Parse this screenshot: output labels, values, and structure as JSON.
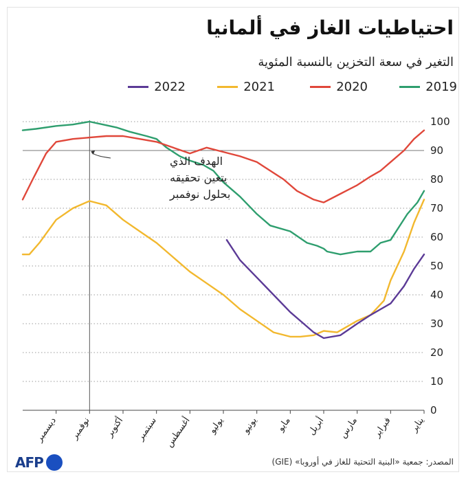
{
  "title": "احتياطيات الغاز في ألمانيا",
  "subtitle": "التغير في سعة التخزين بالنسبة المئوية",
  "source": "المصدر: جمعية «البنية التحتية للغاز في أوروبا» (GIE)",
  "logo": "AFP",
  "colors": {
    "2019": "#2e9e6e",
    "2020": "#e0473a",
    "2021": "#f2b82e",
    "2022": "#5b3a96"
  },
  "legend": [
    {
      "name": "2019",
      "color": "#2e9e6e"
    },
    {
      "name": "2020",
      "color": "#e0473a"
    },
    {
      "name": "2021",
      "color": "#f2b82e"
    },
    {
      "name": "2022",
      "color": "#5b3a96"
    }
  ],
  "annotation": {
    "lines": [
      "الهدف الذي",
      "يتعين تحقيقه",
      "بحلول نوفمبر"
    ],
    "target": 90
  },
  "chart_data": {
    "type": "line",
    "title": "احتياطيات الغاز في ألمانيا",
    "ylabel": "التغير في سعة التخزين بالنسبة المئوية",
    "ylim": [
      0,
      100
    ],
    "yticks": [
      0,
      10,
      20,
      30,
      40,
      50,
      60,
      70,
      80,
      90,
      100
    ],
    "xlim": [
      0,
      12
    ],
    "x_direction": "right-to-left",
    "month_labels": [
      "يناير",
      "فبراير",
      "مارس",
      "أبريل",
      "مايو",
      "يونيو",
      "يوليو",
      "أغسطس",
      "سبتمبر",
      "أكتوبر",
      "نوفمبر",
      "ديسمبر"
    ],
    "month_positions": [
      0,
      1,
      2,
      3,
      4,
      5,
      6,
      7,
      8,
      9,
      10,
      11
    ],
    "reference_line": {
      "y": 90
    },
    "series": [
      {
        "name": "2019",
        "points": [
          [
            0,
            76
          ],
          [
            0.2,
            72
          ],
          [
            0.5,
            68
          ],
          [
            1,
            59
          ],
          [
            1.3,
            58
          ],
          [
            1.6,
            55
          ],
          [
            2,
            55
          ],
          [
            2.5,
            54
          ],
          [
            2.9,
            55
          ],
          [
            3,
            56
          ],
          [
            3.2,
            57
          ],
          [
            3.5,
            58
          ],
          [
            4,
            62
          ],
          [
            4.6,
            64
          ],
          [
            5,
            68
          ],
          [
            5.5,
            74
          ],
          [
            6,
            79
          ],
          [
            6.3,
            83
          ],
          [
            6.6,
            85
          ],
          [
            7,
            86.5
          ],
          [
            7.3,
            88
          ],
          [
            7.7,
            91
          ],
          [
            8,
            94
          ],
          [
            8.3,
            95
          ],
          [
            8.8,
            96.5
          ],
          [
            9.2,
            98
          ],
          [
            9.6,
            99
          ],
          [
            10,
            100
          ],
          [
            10.5,
            99
          ],
          [
            11,
            98.5
          ],
          [
            11.6,
            97.5
          ],
          [
            12,
            97
          ]
        ]
      },
      {
        "name": "2020",
        "points": [
          [
            0,
            97
          ],
          [
            0.3,
            94
          ],
          [
            0.6,
            90
          ],
          [
            1,
            86
          ],
          [
            1.3,
            83
          ],
          [
            1.6,
            81
          ],
          [
            2,
            78
          ],
          [
            2.5,
            75
          ],
          [
            3,
            72
          ],
          [
            3.3,
            73
          ],
          [
            3.8,
            76
          ],
          [
            4.2,
            80
          ],
          [
            4.6,
            83
          ],
          [
            5,
            86
          ],
          [
            5.5,
            88
          ],
          [
            6,
            89.5
          ],
          [
            6.5,
            91
          ],
          [
            7,
            89
          ],
          [
            7.5,
            91
          ],
          [
            8,
            93
          ],
          [
            8.5,
            94
          ],
          [
            9,
            95
          ],
          [
            9.5,
            95
          ],
          [
            10,
            94.5
          ],
          [
            10.5,
            94
          ],
          [
            11,
            93
          ],
          [
            11.3,
            89
          ],
          [
            11.7,
            80
          ],
          [
            12,
            73
          ]
        ]
      },
      {
        "name": "2021",
        "points": [
          [
            0,
            73
          ],
          [
            0.3,
            65
          ],
          [
            0.6,
            55
          ],
          [
            1,
            45
          ],
          [
            1.2,
            38
          ],
          [
            1.6,
            33
          ],
          [
            2,
            31
          ],
          [
            2.3,
            29
          ],
          [
            2.6,
            27
          ],
          [
            3,
            27.5
          ],
          [
            3.3,
            26
          ],
          [
            3.7,
            25.5
          ],
          [
            4,
            25.5
          ],
          [
            4.5,
            27
          ],
          [
            5,
            31
          ],
          [
            5.5,
            35
          ],
          [
            6,
            40
          ],
          [
            6.5,
            44
          ],
          [
            7,
            48
          ],
          [
            7.5,
            53
          ],
          [
            8,
            58
          ],
          [
            8.5,
            62
          ],
          [
            9,
            66
          ],
          [
            9.5,
            71
          ],
          [
            10,
            72.5
          ],
          [
            10.5,
            70
          ],
          [
            11,
            66
          ],
          [
            11.5,
            58
          ],
          [
            11.8,
            54
          ],
          [
            12,
            54
          ]
        ]
      },
      {
        "name": "2022",
        "points": [
          [
            0,
            54
          ],
          [
            0.3,
            49
          ],
          [
            0.6,
            43
          ],
          [
            1,
            37
          ],
          [
            1.3,
            35
          ],
          [
            1.6,
            33
          ],
          [
            2,
            30
          ],
          [
            2.5,
            26
          ],
          [
            3,
            25
          ],
          [
            3.3,
            27
          ],
          [
            3.6,
            30
          ],
          [
            4,
            34
          ],
          [
            4.5,
            40
          ],
          [
            5,
            46
          ],
          [
            5.5,
            52
          ],
          [
            5.9,
            59
          ]
        ]
      }
    ]
  }
}
